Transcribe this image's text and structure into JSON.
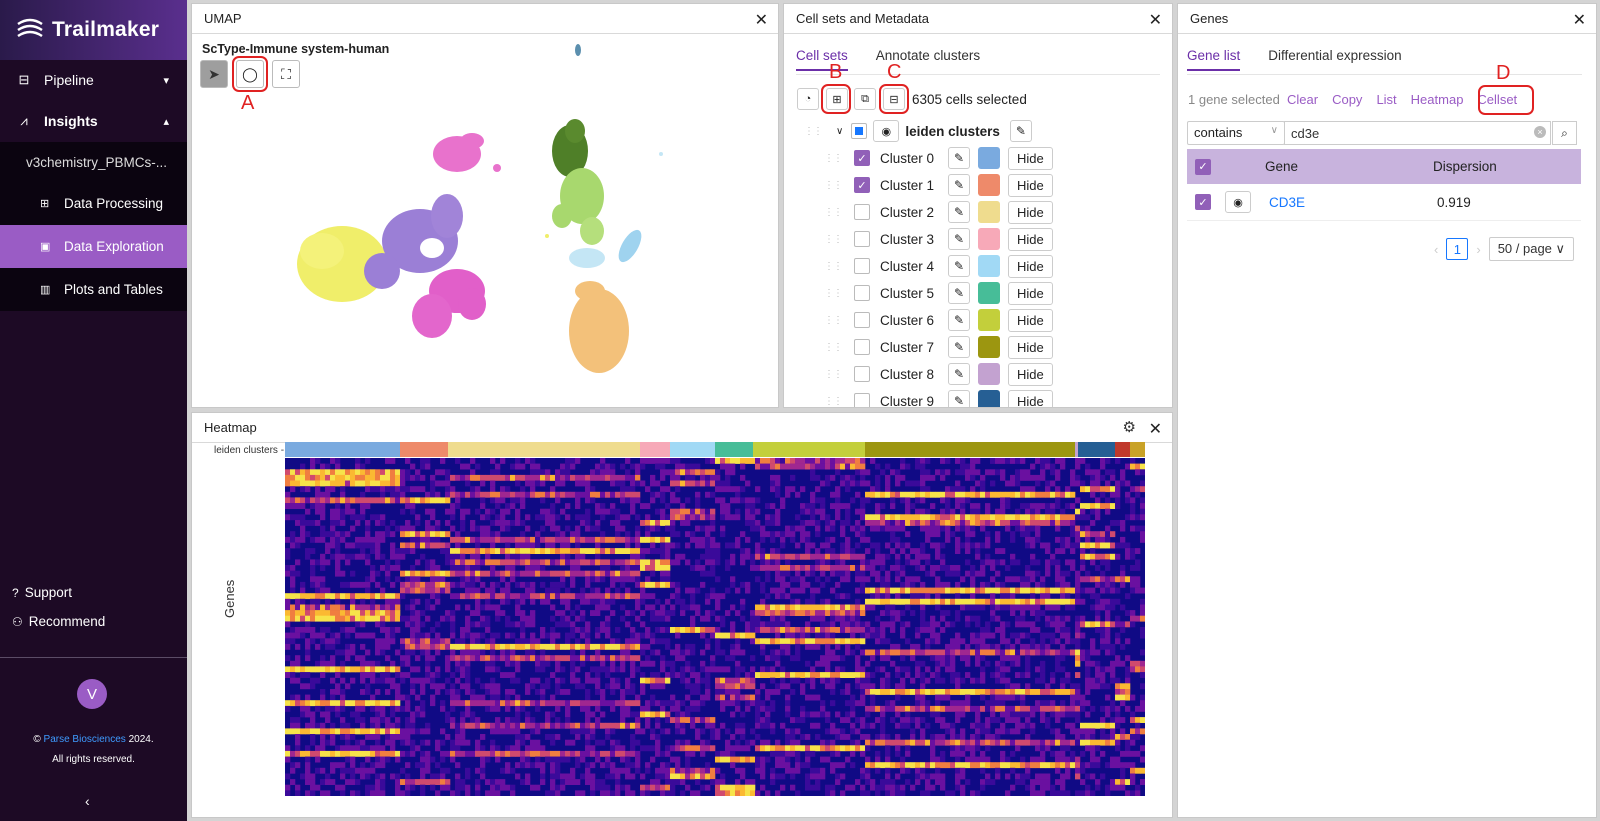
{
  "sidebar": {
    "brand": "Trailmaker",
    "nav": [
      {
        "label": "Pipeline",
        "icon": "pipeline-icon"
      },
      {
        "label": "Insights",
        "icon": "insights-icon"
      }
    ],
    "experiment": "v3chemistry_PBMCs-...",
    "sub_items": [
      {
        "label": "Data Processing",
        "icon": "data-processing-icon"
      },
      {
        "label": "Data Exploration",
        "icon": "data-exploration-icon"
      },
      {
        "label": "Plots and Tables",
        "icon": "plots-icon"
      }
    ],
    "support": "Support",
    "recommend": "Recommend",
    "avatar_initial": "V",
    "copyright_prefix": "©",
    "copyright_link": "Parse Biosciences",
    "copyright_year": "2024.",
    "rights": "All rights reserved."
  },
  "umap": {
    "title": "UMAP",
    "subtitle": "ScType-Immune system-human",
    "annotation": "A"
  },
  "cellsets": {
    "title": "Cell sets and Metadata",
    "tabs": [
      "Cell sets",
      "Annotate clusters"
    ],
    "selected_count": "6305 cells selected",
    "annotations": [
      "B",
      "C"
    ],
    "group_name": "leiden clusters",
    "hide_label": "Hide",
    "clusters": [
      {
        "name": "Cluster 0",
        "checked": true,
        "color": "#7aaadf"
      },
      {
        "name": "Cluster 1",
        "checked": true,
        "color": "#ee8a6a"
      },
      {
        "name": "Cluster 2",
        "checked": false,
        "color": "#efdc8e"
      },
      {
        "name": "Cluster 3",
        "checked": false,
        "color": "#f7a9b8"
      },
      {
        "name": "Cluster 4",
        "checked": false,
        "color": "#a1d9f5"
      },
      {
        "name": "Cluster 5",
        "checked": false,
        "color": "#47bd98"
      },
      {
        "name": "Cluster 6",
        "checked": false,
        "color": "#c3cf3b"
      },
      {
        "name": "Cluster 7",
        "checked": false,
        "color": "#9c9610"
      },
      {
        "name": "Cluster 8",
        "checked": false,
        "color": "#c3a2d0"
      },
      {
        "name": "Cluster 9",
        "checked": false,
        "color": "#265f94"
      }
    ]
  },
  "genes": {
    "title": "Genes",
    "tabs": [
      "Gene list",
      "Differential expression"
    ],
    "selected": "1 gene selected",
    "links": [
      "Clear",
      "Copy",
      "List",
      "Heatmap",
      "Cellset"
    ],
    "annotation": "D",
    "filter_mode": "contains",
    "search_value": "cd3e",
    "columns": [
      "Gene",
      "Dispersion"
    ],
    "rows": [
      {
        "gene": "CD3E",
        "dispersion": "0.919"
      }
    ],
    "page": "1",
    "page_size": "50 / page"
  },
  "heatmap": {
    "title": "Heatmap",
    "track_label": "leiden clusters -",
    "y_label": "Genes",
    "track_colors": [
      "#7aaadf",
      "#ee8a6a",
      "#efdc8e",
      "#f7a9b8",
      "#a1d9f5",
      "#47bd98",
      "#c3cf3b",
      "#9c9610",
      "#c3a2d0",
      "#265f94",
      "#c0392b",
      "#c9a227"
    ],
    "track_widths": [
      115,
      48,
      192,
      30,
      45,
      38,
      112,
      210,
      3,
      37,
      15,
      15
    ]
  }
}
